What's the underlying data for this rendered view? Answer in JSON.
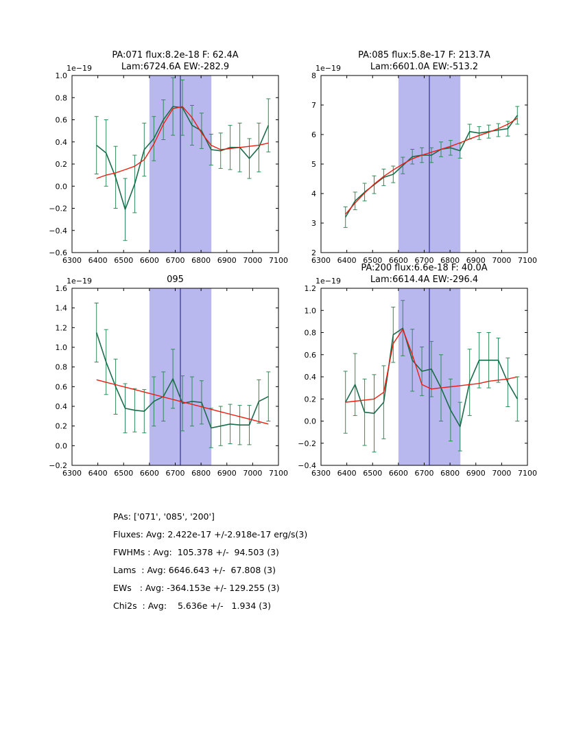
{
  "page": {
    "background": "#ffffff"
  },
  "colors": {
    "spectrum": "#1a6b4a",
    "err": "#2e8b57",
    "fit": "#ee1b10",
    "band": "#b8b8ef",
    "vline": "#151580",
    "frame": "#000000"
  },
  "chart_data": [
    {
      "type": "line",
      "name": "pa071",
      "title_lines": [
        "PA:071 flux:8.2e-18 F: 62.4A",
        "Lam:6724.6A EW:-282.9"
      ],
      "offset_text": "1e−19",
      "xlim": [
        6300,
        7100
      ],
      "ylim": [
        -0.6,
        1.0
      ],
      "xticks": [
        6300,
        6400,
        6500,
        6600,
        6700,
        6800,
        6900,
        7000,
        7100
      ],
      "xtick_labels": [
        "6300",
        "6400",
        "6500",
        "6600",
        "6700",
        "6800",
        "6900",
        "7000",
        "7100"
      ],
      "yticks": [
        -0.6,
        -0.4,
        -0.2,
        0.0,
        0.2,
        0.4,
        0.6,
        0.8,
        1.0
      ],
      "ytick_labels": [
        "−0.6",
        "−0.4",
        "−0.2",
        "0.0",
        "0.2",
        "0.4",
        "0.6",
        "0.8",
        "1.0"
      ],
      "band": [
        6600,
        6840
      ],
      "vline": 6720,
      "x": [
        6395,
        6432,
        6469,
        6506,
        6543,
        6580,
        6617,
        6654,
        6691,
        6728,
        6765,
        6802,
        6839,
        6876,
        6913,
        6950,
        6987,
        7024,
        7061
      ],
      "series": [
        {
          "name": "spectrum",
          "values": [
            0.37,
            0.3,
            0.08,
            -0.21,
            0.02,
            0.33,
            0.43,
            0.6,
            0.72,
            0.71,
            0.55,
            0.5,
            0.33,
            0.32,
            0.35,
            0.35,
            0.25,
            0.35,
            0.55
          ],
          "errors": [
            0.26,
            0.3,
            0.28,
            0.28,
            0.26,
            0.24,
            0.2,
            0.18,
            0.26,
            0.25,
            0.18,
            0.16,
            0.14,
            0.16,
            0.2,
            0.22,
            0.18,
            0.22,
            0.24
          ]
        },
        {
          "name": "fit",
          "values": [
            0.07,
            0.1,
            0.12,
            0.15,
            0.18,
            0.24,
            0.38,
            0.56,
            0.7,
            0.72,
            0.62,
            0.48,
            0.37,
            0.33,
            0.34,
            0.35,
            0.36,
            0.37,
            0.39
          ]
        }
      ]
    },
    {
      "type": "line",
      "name": "pa085",
      "title_lines": [
        "PA:085 flux:5.8e-17 F: 213.7A",
        "Lam:6601.0A EW:-513.2"
      ],
      "offset_text": "1e−19",
      "xlim": [
        6300,
        7100
      ],
      "ylim": [
        2,
        8
      ],
      "xticks": [
        6300,
        6400,
        6500,
        6600,
        6700,
        6800,
        6900,
        7000,
        7100
      ],
      "xtick_labels": [
        "6300",
        "6400",
        "6500",
        "6600",
        "6700",
        "6800",
        "6900",
        "7000",
        "7100"
      ],
      "yticks": [
        2,
        3,
        4,
        5,
        6,
        7,
        8
      ],
      "ytick_labels": [
        "2",
        "3",
        "4",
        "5",
        "6",
        "7",
        "8"
      ],
      "band": [
        6600,
        6840
      ],
      "vline": 6720,
      "x": [
        6395,
        6432,
        6469,
        6506,
        6543,
        6580,
        6617,
        6654,
        6691,
        6728,
        6765,
        6802,
        6839,
        6876,
        6913,
        6950,
        6987,
        7024,
        7061
      ],
      "series": [
        {
          "name": "spectrum",
          "values": [
            3.2,
            3.75,
            4.05,
            4.3,
            4.55,
            4.65,
            4.95,
            5.25,
            5.3,
            5.3,
            5.5,
            5.55,
            5.45,
            6.1,
            6.05,
            6.1,
            6.15,
            6.2,
            6.65
          ],
          "errors": [
            0.35,
            0.3,
            0.3,
            0.3,
            0.28,
            0.28,
            0.28,
            0.25,
            0.25,
            0.25,
            0.25,
            0.25,
            0.25,
            0.25,
            0.22,
            0.22,
            0.22,
            0.25,
            0.3
          ]
        },
        {
          "name": "fit",
          "values": [
            3.3,
            3.68,
            4.02,
            4.32,
            4.58,
            4.8,
            5.0,
            5.18,
            5.3,
            5.4,
            5.5,
            5.6,
            5.72,
            5.85,
            5.97,
            6.08,
            6.2,
            6.35,
            6.55
          ]
        }
      ]
    },
    {
      "type": "line",
      "name": "095",
      "title_lines": [
        "095"
      ],
      "offset_text": "1e−19",
      "xlim": [
        6300,
        7100
      ],
      "ylim": [
        -0.2,
        1.6
      ],
      "xticks": [
        6300,
        6400,
        6500,
        6600,
        6700,
        6800,
        6900,
        7000,
        7100
      ],
      "xtick_labels": [
        "6300",
        "6400",
        "6500",
        "6600",
        "6700",
        "6800",
        "6900",
        "7000",
        "7100"
      ],
      "yticks": [
        -0.2,
        0.0,
        0.2,
        0.4,
        0.6,
        0.8,
        1.0,
        1.2,
        1.4,
        1.6
      ],
      "ytick_labels": [
        "−0.2",
        "0.0",
        "0.2",
        "0.4",
        "0.6",
        "0.8",
        "1.0",
        "1.2",
        "1.4",
        "1.6"
      ],
      "band": [
        6600,
        6840
      ],
      "vline": 6720,
      "x": [
        6395,
        6432,
        6469,
        6506,
        6543,
        6580,
        6617,
        6654,
        6691,
        6728,
        6765,
        6802,
        6839,
        6876,
        6913,
        6950,
        6987,
        7024,
        7061
      ],
      "series": [
        {
          "name": "spectrum",
          "values": [
            1.15,
            0.85,
            0.6,
            0.38,
            0.36,
            0.35,
            0.45,
            0.5,
            0.68,
            0.43,
            0.45,
            0.44,
            0.18,
            0.2,
            0.22,
            0.21,
            0.21,
            0.45,
            0.5
          ],
          "errors": [
            0.3,
            0.33,
            0.28,
            0.25,
            0.22,
            0.22,
            0.25,
            0.25,
            0.3,
            0.28,
            0.25,
            0.22,
            0.2,
            0.2,
            0.2,
            0.2,
            0.2,
            0.22,
            0.25
          ]
        },
        {
          "name": "fit",
          "values": [
            0.67,
            0.645,
            0.62,
            0.595,
            0.57,
            0.545,
            0.52,
            0.495,
            0.47,
            0.445,
            0.42,
            0.395,
            0.37,
            0.345,
            0.32,
            0.295,
            0.27,
            0.245,
            0.22
          ]
        }
      ]
    },
    {
      "type": "line",
      "name": "pa200",
      "title_lines": [
        "PA:200 flux:6.6e-18 F: 40.0A",
        "Lam:6614.4A EW:-296.4"
      ],
      "offset_text": "1e−19",
      "xlim": [
        6300,
        7100
      ],
      "ylim": [
        -0.4,
        1.2
      ],
      "xticks": [
        6300,
        6400,
        6500,
        6600,
        6700,
        6800,
        6900,
        7000,
        7100
      ],
      "xtick_labels": [
        "6300",
        "6400",
        "6500",
        "6600",
        "6700",
        "6800",
        "6900",
        "7000",
        "7100"
      ],
      "yticks": [
        -0.4,
        -0.2,
        0.0,
        0.2,
        0.4,
        0.6,
        0.8,
        1.0,
        1.2
      ],
      "ytick_labels": [
        "−0.4",
        "−0.2",
        "0.0",
        "0.2",
        "0.4",
        "0.6",
        "0.8",
        "1.0",
        "1.2"
      ],
      "band": [
        6600,
        6840
      ],
      "vline": 6720,
      "x": [
        6395,
        6432,
        6469,
        6506,
        6543,
        6580,
        6617,
        6654,
        6691,
        6728,
        6765,
        6802,
        6839,
        6876,
        6913,
        6950,
        6987,
        7024,
        7061
      ],
      "series": [
        {
          "name": "spectrum",
          "values": [
            0.17,
            0.33,
            0.08,
            0.07,
            0.17,
            0.78,
            0.84,
            0.55,
            0.45,
            0.47,
            0.3,
            0.1,
            -0.05,
            0.35,
            0.55,
            0.55,
            0.55,
            0.35,
            0.2
          ],
          "errors": [
            0.28,
            0.28,
            0.3,
            0.35,
            0.33,
            0.25,
            0.25,
            0.28,
            0.22,
            0.25,
            0.3,
            0.28,
            0.22,
            0.3,
            0.25,
            0.25,
            0.2,
            0.22,
            0.2
          ]
        },
        {
          "name": "fit",
          "values": [
            0.17,
            0.18,
            0.19,
            0.2,
            0.26,
            0.7,
            0.83,
            0.6,
            0.33,
            0.29,
            0.3,
            0.31,
            0.32,
            0.33,
            0.34,
            0.36,
            0.37,
            0.38,
            0.4
          ]
        }
      ]
    }
  ],
  "stats": {
    "lines": [
      "PAs: ['071', '085', '200']",
      "Fluxes: Avg: 2.422e-17 +/-2.918e-17 erg/s(3)",
      "FWHMs : Avg:  105.378 +/-  94.503 (3)",
      "Lams  : Avg: 6646.643 +/-  67.808 (3)",
      "EWs   : Avg: -364.153e +/- 129.255 (3)",
      "Chi2s  : Avg:    5.636e +/-   1.934 (3)"
    ]
  }
}
